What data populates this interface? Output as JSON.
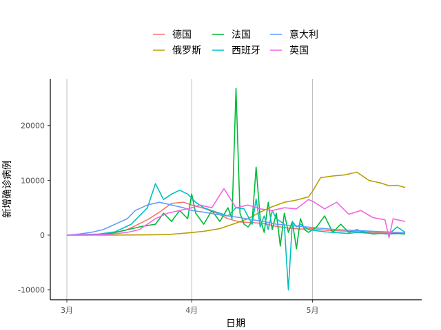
{
  "chart_data": {
    "type": "line",
    "xlabel": "日期",
    "ylabel": "新增确诊病例",
    "x_ticks": [
      {
        "day": 0,
        "label": "3月"
      },
      {
        "day": 31,
        "label": "4月"
      },
      {
        "day": 61,
        "label": "5月"
      }
    ],
    "y_ticks": [
      -10000,
      0,
      10000,
      20000
    ],
    "xlim": [
      0,
      85
    ],
    "ylim": [
      -11800,
      28500
    ],
    "x_range_days": [
      0,
      84
    ],
    "grid": "vertical major lines only",
    "legend_position": "top",
    "series": [
      {
        "name": "德国",
        "color": "#F8766D",
        "x": [
          0,
          5,
          10,
          15,
          20,
          23,
          26,
          29,
          31,
          34,
          37,
          40,
          43,
          46,
          49,
          52,
          55,
          58,
          61,
          64,
          67,
          70,
          73,
          76,
          79,
          82,
          84
        ],
        "values": [
          0,
          20,
          120,
          1000,
          2800,
          4200,
          5800,
          6000,
          5500,
          4900,
          4100,
          3000,
          2400,
          2300,
          2100,
          1600,
          1300,
          1100,
          1200,
          900,
          800,
          700,
          600,
          500,
          400,
          400,
          400
        ]
      },
      {
        "name": "俄罗斯",
        "color": "#B79F00",
        "x": [
          0,
          10,
          20,
          25,
          30,
          34,
          38,
          42,
          45,
          48,
          51,
          54,
          57,
          60,
          61,
          63,
          66,
          69,
          72,
          75,
          78,
          80,
          82,
          84
        ],
        "values": [
          0,
          0,
          50,
          100,
          400,
          700,
          1200,
          2200,
          3000,
          4200,
          5200,
          6000,
          6400,
          7000,
          8000,
          10500,
          10800,
          11000,
          11500,
          10000,
          9500,
          9000,
          9100,
          8700
        ]
      },
      {
        "name": "法国",
        "color": "#00BA38",
        "x": [
          0,
          10,
          14,
          18,
          22,
          24,
          26,
          28,
          30,
          31,
          32,
          34,
          36,
          38,
          40,
          41,
          42,
          43,
          44,
          45,
          46,
          47,
          48,
          49,
          50,
          51,
          52,
          53,
          54,
          55,
          56,
          57,
          58,
          59,
          60,
          62,
          64,
          66,
          68,
          70,
          72,
          74,
          76,
          78,
          80,
          82,
          84
        ],
        "values": [
          0,
          200,
          800,
          1500,
          2000,
          4000,
          2500,
          4500,
          3000,
          7500,
          4000,
          2000,
          4500,
          2500,
          5000,
          3000,
          26800,
          4000,
          2000,
          1500,
          2500,
          12400,
          3000,
          500,
          6000,
          1000,
          4000,
          -2000,
          4000,
          500,
          2500,
          -2500,
          3000,
          1000,
          500,
          1500,
          3500,
          500,
          2000,
          500,
          1000,
          500,
          200,
          300,
          200,
          300,
          200
        ]
      },
      {
        "name": "西班牙",
        "color": "#00BFC4",
        "x": [
          0,
          8,
          12,
          16,
          20,
          22,
          24,
          26,
          28,
          30,
          32,
          34,
          36,
          38,
          40,
          42,
          44,
          46,
          47,
          48,
          49,
          50,
          51,
          52,
          54,
          55,
          56,
          57,
          58,
          60,
          62,
          64,
          66,
          68,
          70,
          72,
          74,
          76,
          78,
          80,
          82,
          84
        ],
        "values": [
          0,
          200,
          600,
          2000,
          5000,
          9400,
          6500,
          7500,
          8200,
          7500,
          6000,
          5000,
          4500,
          4000,
          3500,
          5000,
          4800,
          2000,
          6600,
          1500,
          3500,
          1000,
          4500,
          3000,
          2000,
          -10000,
          2500,
          1500,
          2000,
          1000,
          800,
          600,
          500,
          400,
          300,
          500,
          400,
          300,
          300,
          200,
          1500,
          500
        ]
      },
      {
        "name": "意大利",
        "color": "#619CFF",
        "x": [
          0,
          3,
          6,
          9,
          12,
          15,
          17,
          20,
          23,
          26,
          29,
          31,
          34,
          37,
          40,
          43,
          46,
          49,
          52,
          55,
          58,
          61,
          64,
          67,
          70,
          73,
          76,
          79,
          82,
          84
        ],
        "values": [
          0,
          200,
          500,
          1000,
          2000,
          3000,
          4500,
          5500,
          6000,
          5500,
          5000,
          4500,
          4200,
          3800,
          3500,
          3200,
          2800,
          2500,
          2000,
          1800,
          1600,
          1400,
          1200,
          1000,
          900,
          800,
          700,
          600,
          500,
          400
        ]
      },
      {
        "name": "英国",
        "color": "#F564E3",
        "x": [
          0,
          10,
          15,
          18,
          20,
          22,
          25,
          28,
          31,
          33,
          36,
          39,
          42,
          45,
          48,
          51,
          54,
          57,
          60,
          61,
          64,
          67,
          70,
          73,
          76,
          79,
          80,
          81,
          82,
          84
        ],
        "values": [
          0,
          100,
          500,
          1000,
          2000,
          3000,
          4000,
          4500,
          5000,
          5500,
          5000,
          8500,
          5000,
          5500,
          4800,
          4500,
          5000,
          4800,
          6500,
          6200,
          4800,
          6000,
          3800,
          4500,
          3200,
          2800,
          -500,
          3000,
          2800,
          2500
        ]
      }
    ]
  }
}
